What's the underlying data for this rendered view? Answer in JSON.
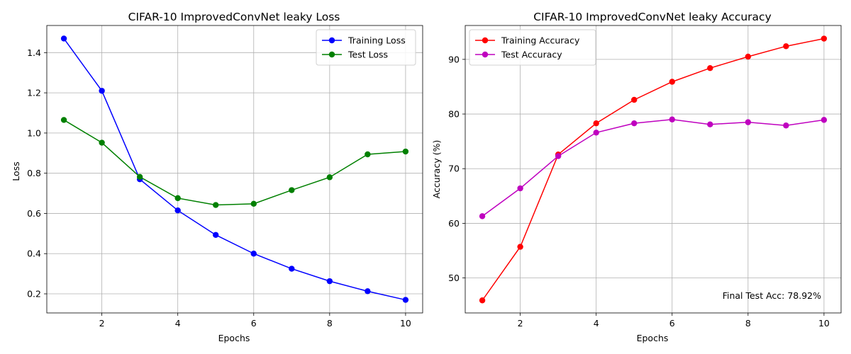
{
  "chart_data": [
    {
      "type": "line",
      "title": "CIFAR-10 ImprovedConvNet leaky Loss",
      "xlabel": "Epochs",
      "ylabel": "Loss",
      "xlim": [
        0.55,
        10.45
      ],
      "ylim": [
        0.105,
        1.535
      ],
      "x_ticks": [
        2,
        4,
        6,
        8,
        10
      ],
      "x_tick_labels": [
        "2",
        "4",
        "6",
        "8",
        "10"
      ],
      "y_ticks": [
        0.2,
        0.4,
        0.6,
        0.8,
        1.0,
        1.2,
        1.4
      ],
      "y_tick_labels": [
        "0.2",
        "0.4",
        "0.6",
        "0.8",
        "1.0",
        "1.2",
        "1.4"
      ],
      "grid": true,
      "legend_position": "top-right",
      "x": [
        1,
        2,
        3,
        4,
        5,
        6,
        7,
        8,
        9,
        10
      ],
      "series": [
        {
          "name": "Training Loss",
          "color": "#0000ff",
          "values": [
            1.47,
            1.21,
            0.77,
            0.615,
            0.493,
            0.4,
            0.325,
            0.263,
            0.213,
            0.17
          ]
        },
        {
          "name": "Test Loss",
          "color": "#008000",
          "values": [
            1.065,
            0.952,
            0.782,
            0.676,
            0.642,
            0.648,
            0.716,
            0.78,
            0.894,
            0.908
          ]
        }
      ]
    },
    {
      "type": "line",
      "title": "CIFAR-10 ImprovedConvNet leaky Accuracy",
      "xlabel": "Epochs",
      "ylabel": "Accuracy (%)",
      "xlim": [
        0.55,
        10.45
      ],
      "ylim": [
        43.6,
        96.2
      ],
      "x_ticks": [
        2,
        4,
        6,
        8,
        10
      ],
      "x_tick_labels": [
        "2",
        "4",
        "6",
        "8",
        "10"
      ],
      "y_ticks": [
        50,
        60,
        70,
        80,
        90
      ],
      "y_tick_labels": [
        "50",
        "60",
        "70",
        "80",
        "90"
      ],
      "grid": true,
      "legend_position": "top-left",
      "annotation": "Final Test Acc: 78.92%",
      "x": [
        1,
        2,
        3,
        4,
        5,
        6,
        7,
        8,
        9,
        10
      ],
      "series": [
        {
          "name": "Training Accuracy",
          "color": "#ff0000",
          "values": [
            45.9,
            55.7,
            72.6,
            78.3,
            82.6,
            85.9,
            88.4,
            90.5,
            92.4,
            93.8
          ]
        },
        {
          "name": "Test Accuracy",
          "color": "#bf00bf",
          "values": [
            61.3,
            66.4,
            72.3,
            76.6,
            78.3,
            79.0,
            78.1,
            78.5,
            77.9,
            78.92
          ]
        }
      ]
    }
  ]
}
